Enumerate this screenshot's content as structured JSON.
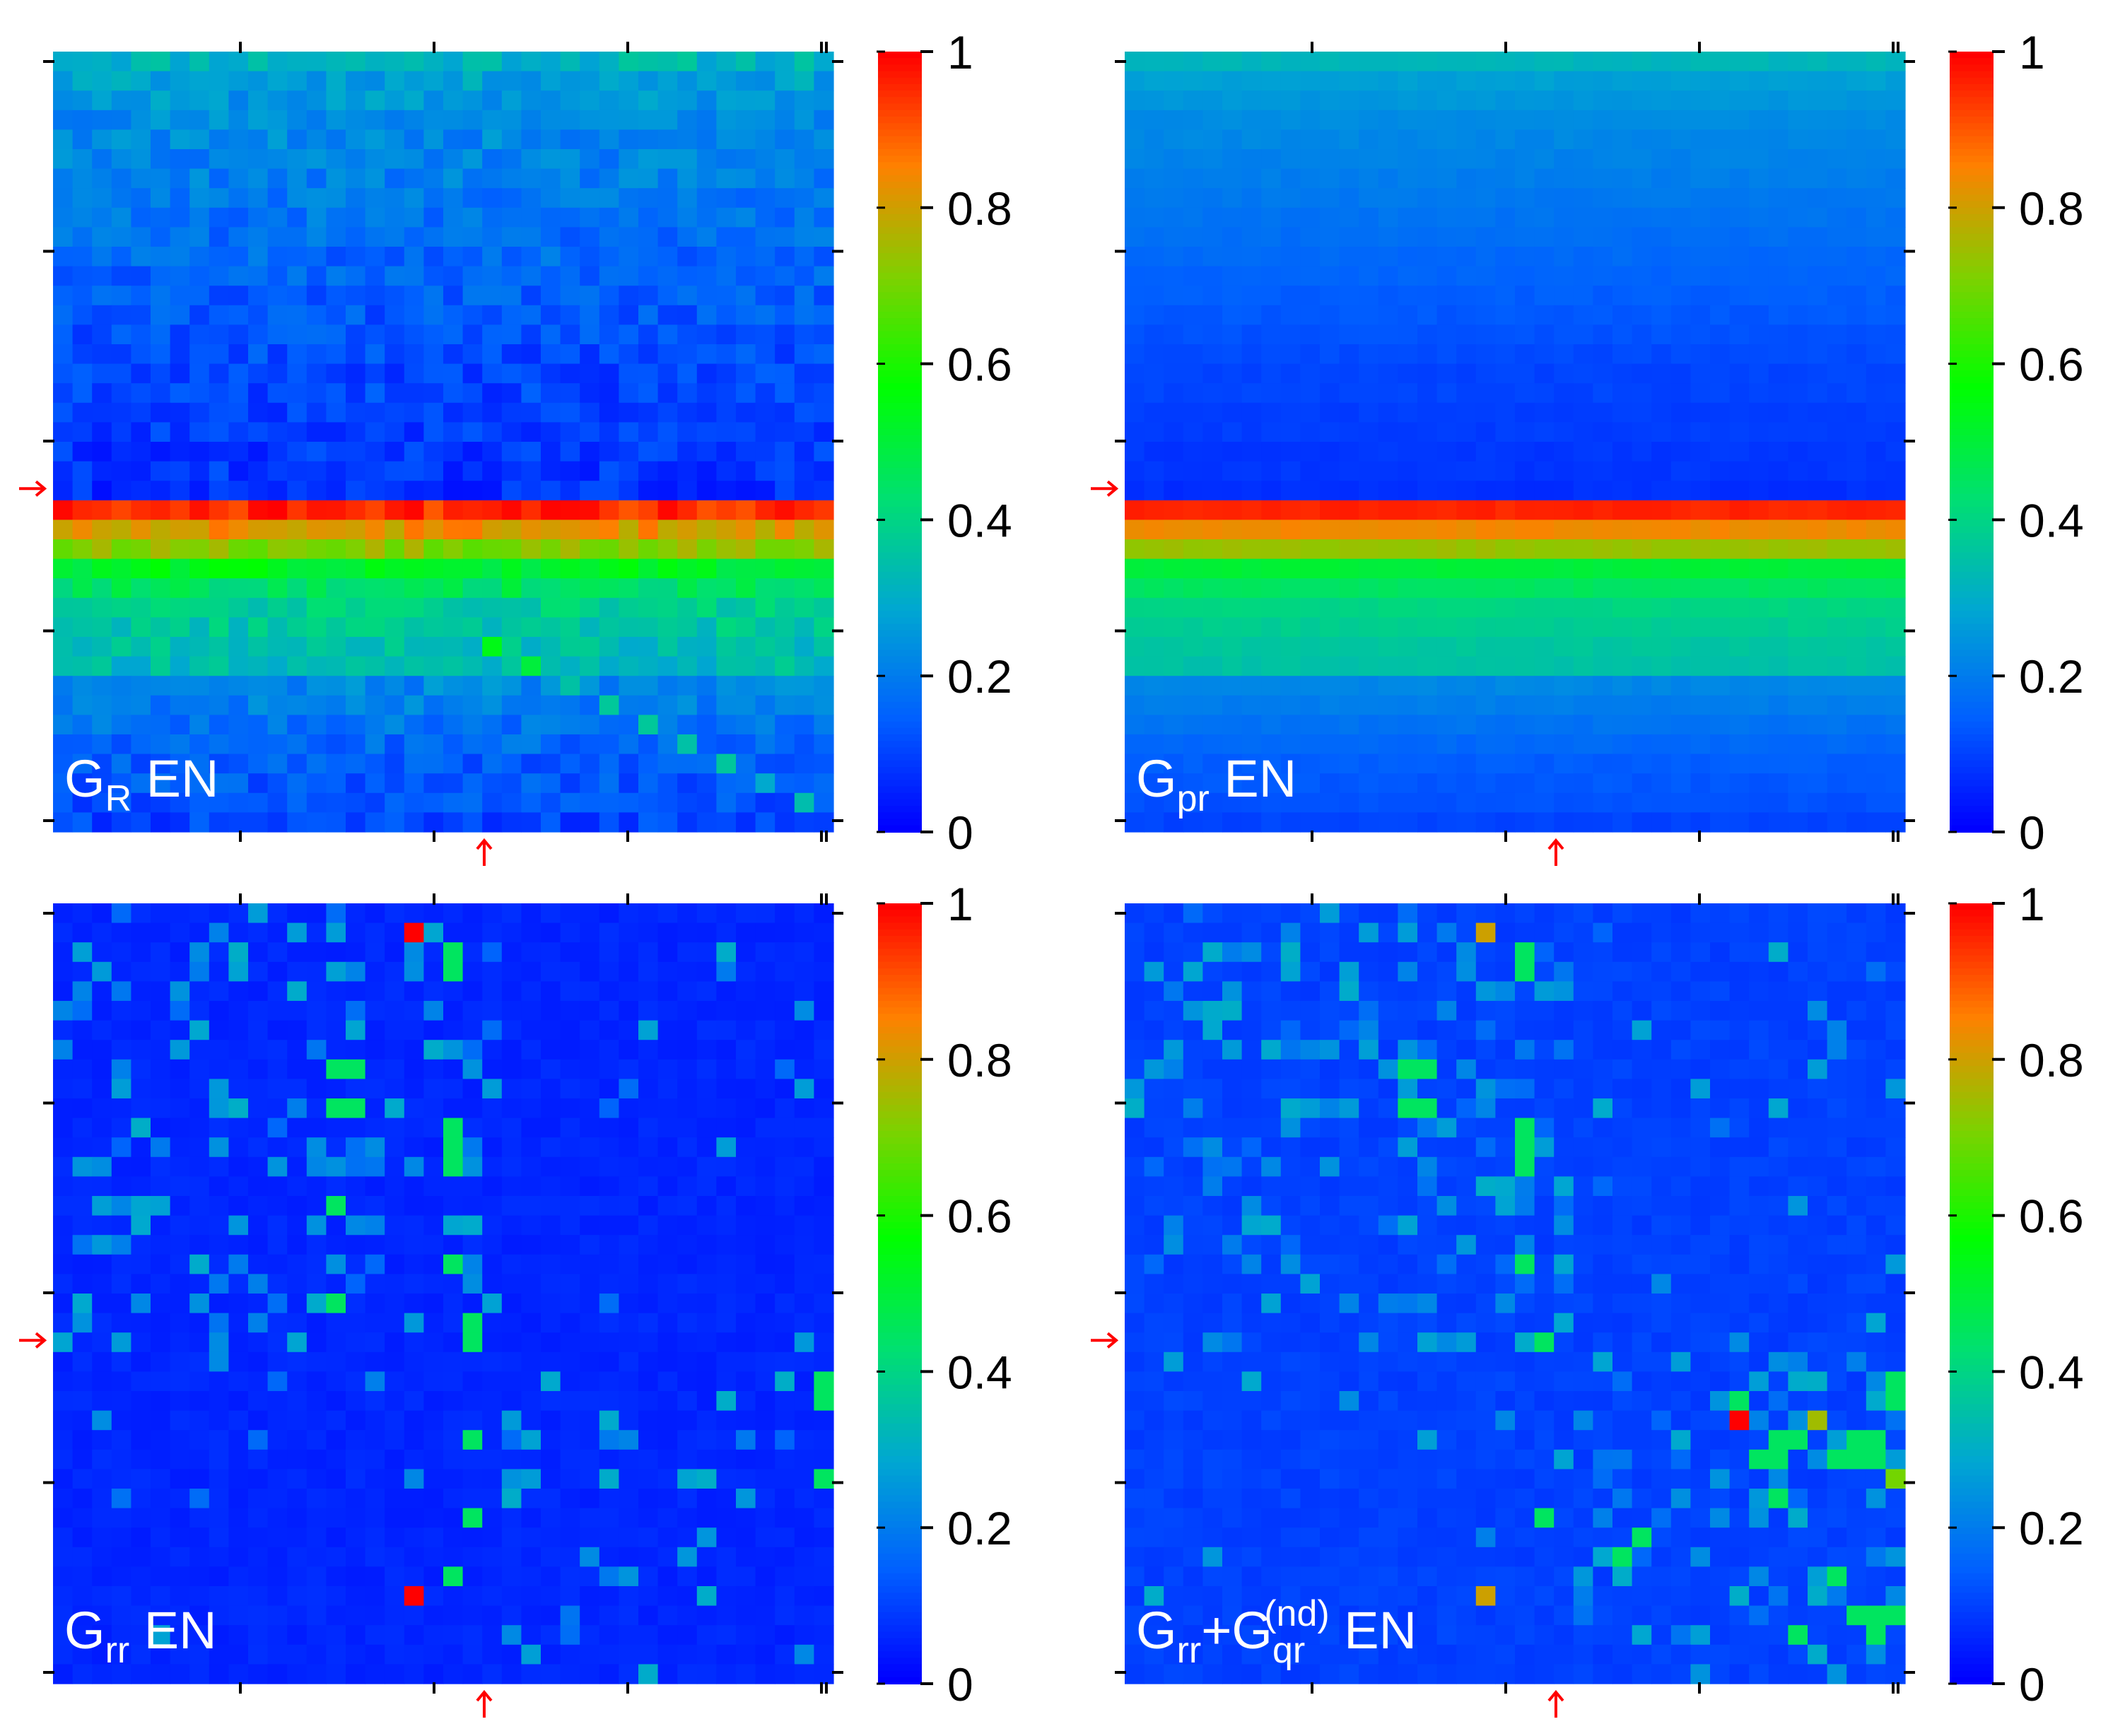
{
  "colors": {
    "colormap": [
      "#0000ff",
      "#0060ff",
      "#00a8d0",
      "#00e070",
      "#00ff00",
      "#80d000",
      "#ff8000",
      "#ff0000"
    ],
    "marker": "#ff0000",
    "axis": "#000000"
  },
  "chart_data": [
    {
      "type": "heatmap",
      "kind": "band",
      "main": "G",
      "sub": "R",
      "tail": "  EN",
      "n": 40,
      "marker_index": 23,
      "colorbar": {
        "min": 0,
        "max": 1,
        "ticks": [
          "0",
          "0.2",
          "0.4",
          "0.6",
          "0.8",
          "1"
        ]
      },
      "row_profile": [
        0.32,
        0.27,
        0.25,
        0.23,
        0.22,
        0.21,
        0.2,
        0.19,
        0.18,
        0.17,
        0.16,
        0.15,
        0.14,
        0.13,
        0.12,
        0.11,
        0.1,
        0.1,
        0.09,
        0.09,
        0.08,
        0.08,
        0.07,
        0.95,
        0.82,
        0.72,
        0.52,
        0.45,
        0.38,
        0.36,
        0.34,
        0.33,
        0.22,
        0.2,
        0.18,
        0.16,
        0.14,
        0.13,
        0.12,
        0.1
      ],
      "noise": 0.05
    },
    {
      "type": "heatmap",
      "kind": "band",
      "main": "G",
      "sub": "pr",
      "tail": "  EN",
      "n": 40,
      "marker_index": 23,
      "colorbar": {
        "min": 0,
        "max": 1,
        "ticks": [
          "0",
          "0.2",
          "0.4",
          "0.6",
          "0.8",
          "1"
        ]
      },
      "row_profile": [
        0.32,
        0.27,
        0.25,
        0.23,
        0.22,
        0.21,
        0.2,
        0.19,
        0.18,
        0.17,
        0.16,
        0.15,
        0.14,
        0.13,
        0.12,
        0.11,
        0.1,
        0.1,
        0.09,
        0.09,
        0.08,
        0.08,
        0.07,
        0.96,
        0.84,
        0.74,
        0.5,
        0.45,
        0.4,
        0.38,
        0.36,
        0.35,
        0.22,
        0.2,
        0.18,
        0.16,
        0.14,
        0.13,
        0.12,
        0.1
      ],
      "noise": 0.01
    },
    {
      "type": "heatmap",
      "kind": "sparse",
      "main": "G",
      "sub": "rr",
      "tail": "  EN",
      "n": 40,
      "marker_index": 23,
      "colorbar": {
        "min": 0,
        "max": 1,
        "ticks": [
          "0",
          "0.2",
          "0.4",
          "0.6",
          "0.8",
          "1"
        ]
      },
      "seed": 7,
      "base": 0.04,
      "density": 0.16,
      "hot_cells": [
        [
          1,
          18,
          1.0
        ],
        [
          2,
          20,
          0.45
        ],
        [
          3,
          20,
          0.45
        ],
        [
          8,
          14,
          0.45
        ],
        [
          8,
          15,
          0.45
        ],
        [
          10,
          14,
          0.45
        ],
        [
          10,
          15,
          0.45
        ],
        [
          11,
          20,
          0.45
        ],
        [
          12,
          20,
          0.45
        ],
        [
          13,
          20,
          0.45
        ],
        [
          15,
          14,
          0.45
        ],
        [
          18,
          20,
          0.45
        ],
        [
          20,
          14,
          0.45
        ],
        [
          21,
          21,
          0.45
        ],
        [
          22,
          21,
          0.45
        ],
        [
          24,
          39,
          0.45
        ],
        [
          25,
          39,
          0.45
        ],
        [
          27,
          21,
          0.45
        ],
        [
          29,
          39,
          0.45
        ],
        [
          31,
          21,
          0.45
        ],
        [
          34,
          20,
          0.45
        ],
        [
          35,
          18,
          1.0
        ]
      ]
    },
    {
      "type": "heatmap",
      "kind": "sparse",
      "main": "G",
      "sub": "rr",
      "tail": "+G",
      "sub2": "qr",
      "sup2": "(nd)",
      "tail2": "  EN",
      "n": 40,
      "marker_index": 23,
      "colorbar": {
        "min": 0,
        "max": 1,
        "ticks": [
          "0",
          "0.2",
          "0.4",
          "0.6",
          "0.8",
          "1"
        ]
      },
      "seed": 7,
      "base": 0.08,
      "density": 0.22,
      "hot_cells": [
        [
          1,
          18,
          0.8
        ],
        [
          2,
          20,
          0.45
        ],
        [
          3,
          20,
          0.45
        ],
        [
          8,
          14,
          0.45
        ],
        [
          8,
          15,
          0.45
        ],
        [
          10,
          14,
          0.45
        ],
        [
          10,
          15,
          0.45
        ],
        [
          11,
          20,
          0.45
        ],
        [
          12,
          20,
          0.45
        ],
        [
          13,
          20,
          0.45
        ],
        [
          18,
          20,
          0.45
        ],
        [
          22,
          21,
          0.45
        ],
        [
          25,
          31,
          0.45
        ],
        [
          26,
          31,
          0.45
        ],
        [
          24,
          39,
          0.45
        ],
        [
          25,
          39,
          0.45
        ],
        [
          26,
          31,
          1.0
        ],
        [
          26,
          35,
          0.75
        ],
        [
          27,
          33,
          0.45
        ],
        [
          27,
          34,
          0.45
        ],
        [
          27,
          37,
          0.45
        ],
        [
          27,
          38,
          0.45
        ],
        [
          28,
          32,
          0.45
        ],
        [
          28,
          33,
          0.45
        ],
        [
          28,
          36,
          0.45
        ],
        [
          28,
          37,
          0.45
        ],
        [
          28,
          38,
          0.45
        ],
        [
          29,
          39,
          0.7
        ],
        [
          30,
          33,
          0.45
        ],
        [
          31,
          21,
          0.45
        ],
        [
          32,
          26,
          0.45
        ],
        [
          33,
          25,
          0.45
        ],
        [
          34,
          36,
          0.45
        ],
        [
          35,
          18,
          0.8
        ],
        [
          36,
          37,
          0.45
        ],
        [
          36,
          38,
          0.45
        ],
        [
          36,
          39,
          0.45
        ],
        [
          37,
          34,
          0.45
        ],
        [
          37,
          38,
          0.45
        ]
      ]
    }
  ]
}
